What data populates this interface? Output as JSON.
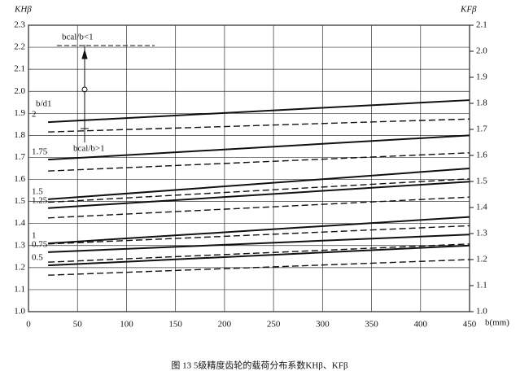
{
  "chart_data": {
    "type": "line",
    "y_label": "KHβ",
    "y2_label": "KFβ",
    "x_label": "b(mm)",
    "caption": "图 13  5级精度齿轮的载荷分布系数KHβ、KFβ",
    "group_label": "b/d1",
    "annotations": [
      "bcal/b<1",
      "bcal/b>1"
    ],
    "x": [
      20,
      450
    ],
    "xlim": [
      0,
      450
    ],
    "xticks": [
      0,
      50,
      100,
      150,
      200,
      250,
      300,
      350,
      400,
      450
    ],
    "ylim": [
      1.0,
      2.3
    ],
    "yticks": [
      {
        "value": 1.0,
        "label": "1.0"
      },
      {
        "value": 1.1,
        "label": "1.1"
      },
      {
        "value": 1.2,
        "label": "1.2"
      },
      {
        "value": 1.3,
        "label": "1.3"
      },
      {
        "value": 1.4,
        "label": "1.4"
      },
      {
        "value": 1.5,
        "label": "1.5"
      },
      {
        "value": 1.6,
        "label": "1.6"
      },
      {
        "value": 1.7,
        "label": "1.7"
      },
      {
        "value": 1.8,
        "label": "1.8"
      },
      {
        "value": 1.9,
        "label": "1.9"
      },
      {
        "value": 2.0,
        "label": "2.0"
      },
      {
        "value": 2.1,
        "label": "2.1"
      },
      {
        "value": 2.2,
        "label": "2.2"
      },
      {
        "value": 2.3,
        "label": "2.3"
      }
    ],
    "y2lim": [
      1.0,
      2.1
    ],
    "y2ticks": [
      {
        "value": 1.0,
        "label": "1.0"
      },
      {
        "value": 1.1,
        "label": "1.1"
      },
      {
        "value": 1.2,
        "label": "1.2"
      },
      {
        "value": 1.3,
        "label": "1.3"
      },
      {
        "value": 1.4,
        "label": "1.4"
      },
      {
        "value": 1.5,
        "label": "1.5"
      },
      {
        "value": 1.6,
        "label": "1.6"
      },
      {
        "value": 1.7,
        "label": "1.7"
      },
      {
        "value": 1.8,
        "label": "1.8"
      },
      {
        "value": 1.9,
        "label": "1.9"
      },
      {
        "value": 2.0,
        "label": "2.0"
      },
      {
        "value": 2.1,
        "label": "2.1"
      }
    ],
    "grid": true,
    "color": "#111111",
    "series": [
      {
        "name": "2",
        "values": [
          1.86,
          1.96
        ]
      },
      {
        "name": "1.75",
        "values": [
          1.69,
          1.8
        ]
      },
      {
        "name": "1.5",
        "values": [
          1.51,
          1.65
        ]
      },
      {
        "name": "1.25",
        "values": [
          1.47,
          1.59
        ]
      },
      {
        "name": "1",
        "values": [
          1.31,
          1.43
        ]
      },
      {
        "name": "0.75",
        "values": [
          1.27,
          1.35
        ]
      },
      {
        "name": "0.5",
        "values": [
          1.21,
          1.3
        ]
      },
      {
        "axis": "y2",
        "values": [
          1.69,
          1.74
        ]
      },
      {
        "axis": "y2",
        "values": [
          1.54,
          1.61
        ]
      },
      {
        "axis": "y2",
        "values": [
          1.42,
          1.51
        ]
      },
      {
        "axis": "y2",
        "values": [
          1.36,
          1.44
        ]
      },
      {
        "axis": "y2",
        "values": [
          1.26,
          1.33
        ]
      },
      {
        "axis": "y2",
        "values": [
          1.19,
          1.26
        ]
      },
      {
        "axis": "y2",
        "values": [
          1.14,
          1.2
        ]
      }
    ]
  }
}
